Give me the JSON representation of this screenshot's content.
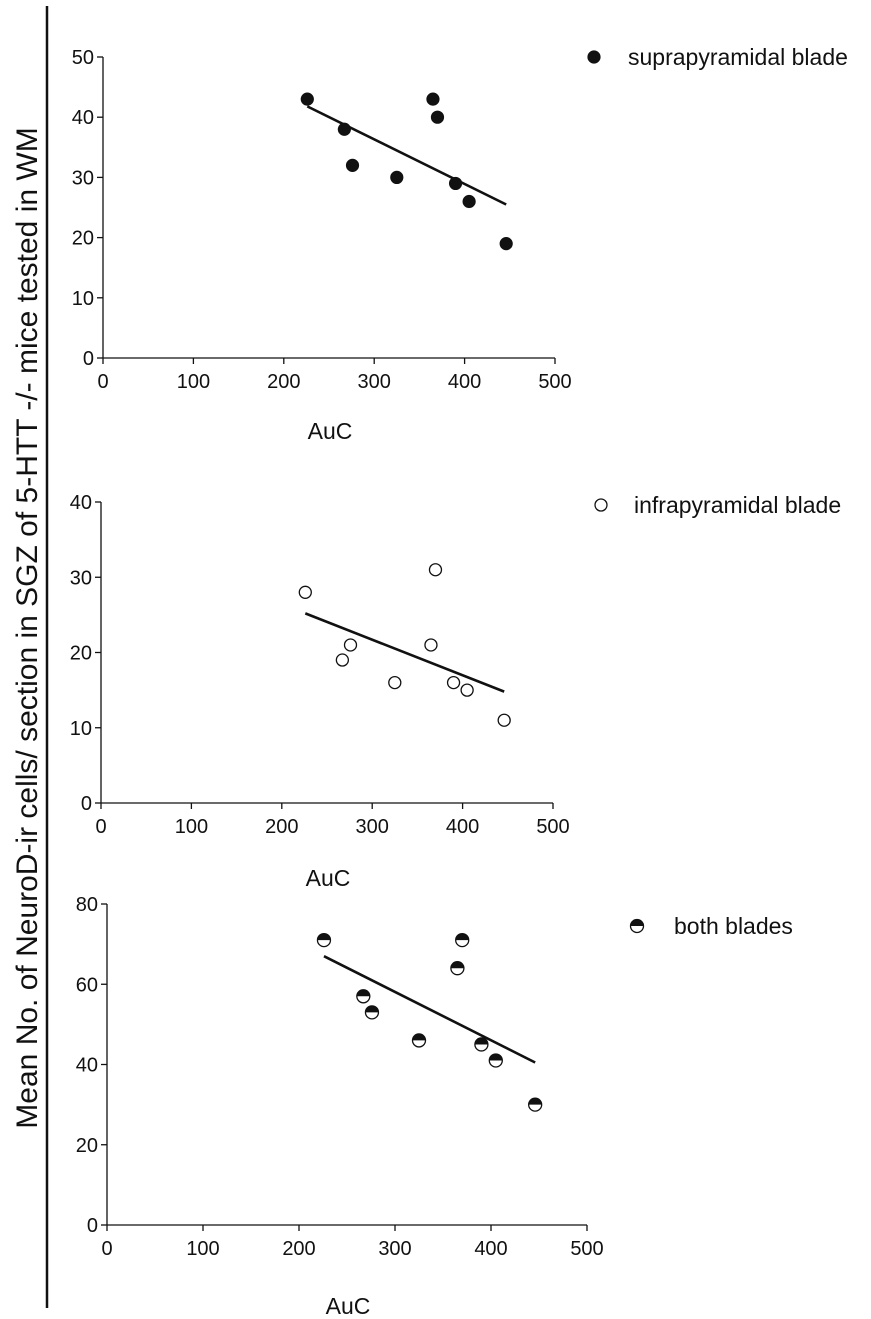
{
  "figure": {
    "shared_ylabel": "Mean No. of NeuroD-ir cells/ section in SGZ of 5-HTT -/- mice tested in WM"
  },
  "chart_data": [
    {
      "type": "scatter",
      "xlabel": "AuC",
      "ylabel": "Mean No. of NeuroD-ir cells/ section in SGZ of 5-HTT -/- mice tested in WM",
      "xlim": [
        0,
        500
      ],
      "ylim": [
        0,
        50
      ],
      "xticks": [
        "0",
        "100",
        "200",
        "300",
        "400",
        "500"
      ],
      "yticks": [
        "0",
        "10",
        "20",
        "30",
        "40",
        "50"
      ],
      "legend_position": "top-right",
      "series": [
        {
          "name": "suprapyramidal blade",
          "marker": "filled-circle",
          "points": [
            {
              "x": 226,
              "y": 43
            },
            {
              "x": 267,
              "y": 38
            },
            {
              "x": 276,
              "y": 32
            },
            {
              "x": 325,
              "y": 30
            },
            {
              "x": 365,
              "y": 43
            },
            {
              "x": 370,
              "y": 40
            },
            {
              "x": 390,
              "y": 29
            },
            {
              "x": 405,
              "y": 26
            },
            {
              "x": 446,
              "y": 19
            }
          ],
          "regression": {
            "x": [
              226,
              446
            ],
            "y": [
              41.8,
              25.5
            ]
          }
        }
      ]
    },
    {
      "type": "scatter",
      "xlabel": "AuC",
      "ylabel": "Mean No. of NeuroD-ir cells/ section in SGZ of 5-HTT -/- mice tested in WM",
      "xlim": [
        0,
        500
      ],
      "ylim": [
        0,
        40
      ],
      "xticks": [
        "0",
        "100",
        "200",
        "300",
        "400",
        "500"
      ],
      "yticks": [
        "0",
        "10",
        "20",
        "30",
        "40"
      ],
      "legend_position": "top-right",
      "series": [
        {
          "name": "infrapyramidal blade",
          "marker": "open-circle",
          "points": [
            {
              "x": 226,
              "y": 28
            },
            {
              "x": 267,
              "y": 19
            },
            {
              "x": 276,
              "y": 21
            },
            {
              "x": 325,
              "y": 16
            },
            {
              "x": 365,
              "y": 21
            },
            {
              "x": 370,
              "y": 31
            },
            {
              "x": 390,
              "y": 16
            },
            {
              "x": 405,
              "y": 15
            },
            {
              "x": 446,
              "y": 11
            }
          ],
          "regression": {
            "x": [
              226,
              446
            ],
            "y": [
              25.2,
              14.8
            ]
          }
        }
      ]
    },
    {
      "type": "scatter",
      "xlabel": "AuC",
      "ylabel": "Mean No. of NeuroD-ir cells/ section in SGZ of 5-HTT -/- mice tested in WM",
      "xlim": [
        0,
        500
      ],
      "ylim": [
        0,
        80
      ],
      "xticks": [
        "0",
        "100",
        "200",
        "300",
        "400",
        "500"
      ],
      "yticks": [
        "0",
        "20",
        "40",
        "60",
        "80"
      ],
      "legend_position": "top-right",
      "series": [
        {
          "name": "both blades",
          "marker": "half-filled-circle",
          "points": [
            {
              "x": 226,
              "y": 71
            },
            {
              "x": 267,
              "y": 57
            },
            {
              "x": 276,
              "y": 53
            },
            {
              "x": 325,
              "y": 46
            },
            {
              "x": 365,
              "y": 64
            },
            {
              "x": 370,
              "y": 71
            },
            {
              "x": 390,
              "y": 45
            },
            {
              "x": 405,
              "y": 41
            },
            {
              "x": 446,
              "y": 30
            }
          ],
          "regression": {
            "x": [
              226,
              446
            ],
            "y": [
              67,
              40.5
            ]
          }
        }
      ]
    }
  ]
}
